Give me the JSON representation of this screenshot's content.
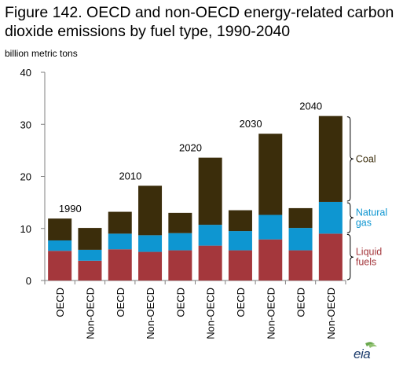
{
  "title": "Figure 142. OECD and non-OECD energy-related carbon dioxide emissions by fuel type, 1990-2040",
  "logo_text": "eia",
  "chart_data": {
    "type": "bar",
    "stacked": true,
    "title": "Figure 142. OECD and non-OECD energy-related carbon dioxide emissions by fuel type, 1990-2040",
    "ylabel": "billion metric tons",
    "xlabel": "",
    "ylim": [
      0,
      40
    ],
    "yticks": [
      0,
      10,
      20,
      30,
      40
    ],
    "grid": false,
    "categories": [
      "OECD",
      "Non-OECD",
      "OECD",
      "Non-OECD",
      "OECD",
      "Non-OECD",
      "OECD",
      "Non-OECD",
      "OECD",
      "Non-OECD"
    ],
    "year_labels": [
      {
        "label": "1990",
        "group": 0
      },
      {
        "label": "2010",
        "group": 1
      },
      {
        "label": "2020",
        "group": 2
      },
      {
        "label": "2030",
        "group": 3
      },
      {
        "label": "2040",
        "group": 4
      }
    ],
    "series": [
      {
        "name": "Liquid fuels",
        "color": "#a4373c",
        "values": [
          5.7,
          3.8,
          6.0,
          5.5,
          5.8,
          6.7,
          5.8,
          7.9,
          5.8,
          9.0
        ]
      },
      {
        "name": "Natural gas",
        "color": "#0e96d1",
        "values": [
          2.0,
          2.1,
          3.0,
          3.2,
          3.3,
          4.0,
          3.7,
          4.7,
          4.3,
          6.1
        ]
      },
      {
        "name": "Coal",
        "color": "#3b2d0b",
        "values": [
          4.2,
          4.2,
          4.2,
          9.5,
          3.9,
          12.9,
          4.0,
          15.6,
          3.8,
          16.5
        ]
      }
    ],
    "legend_labels": [
      {
        "lines": [
          "Coal"
        ],
        "series": "Coal"
      },
      {
        "lines": [
          "Natural",
          "gas"
        ],
        "series": "Natural gas"
      },
      {
        "lines": [
          "Liquid",
          "fuels"
        ],
        "series": "Liquid fuels"
      }
    ]
  }
}
